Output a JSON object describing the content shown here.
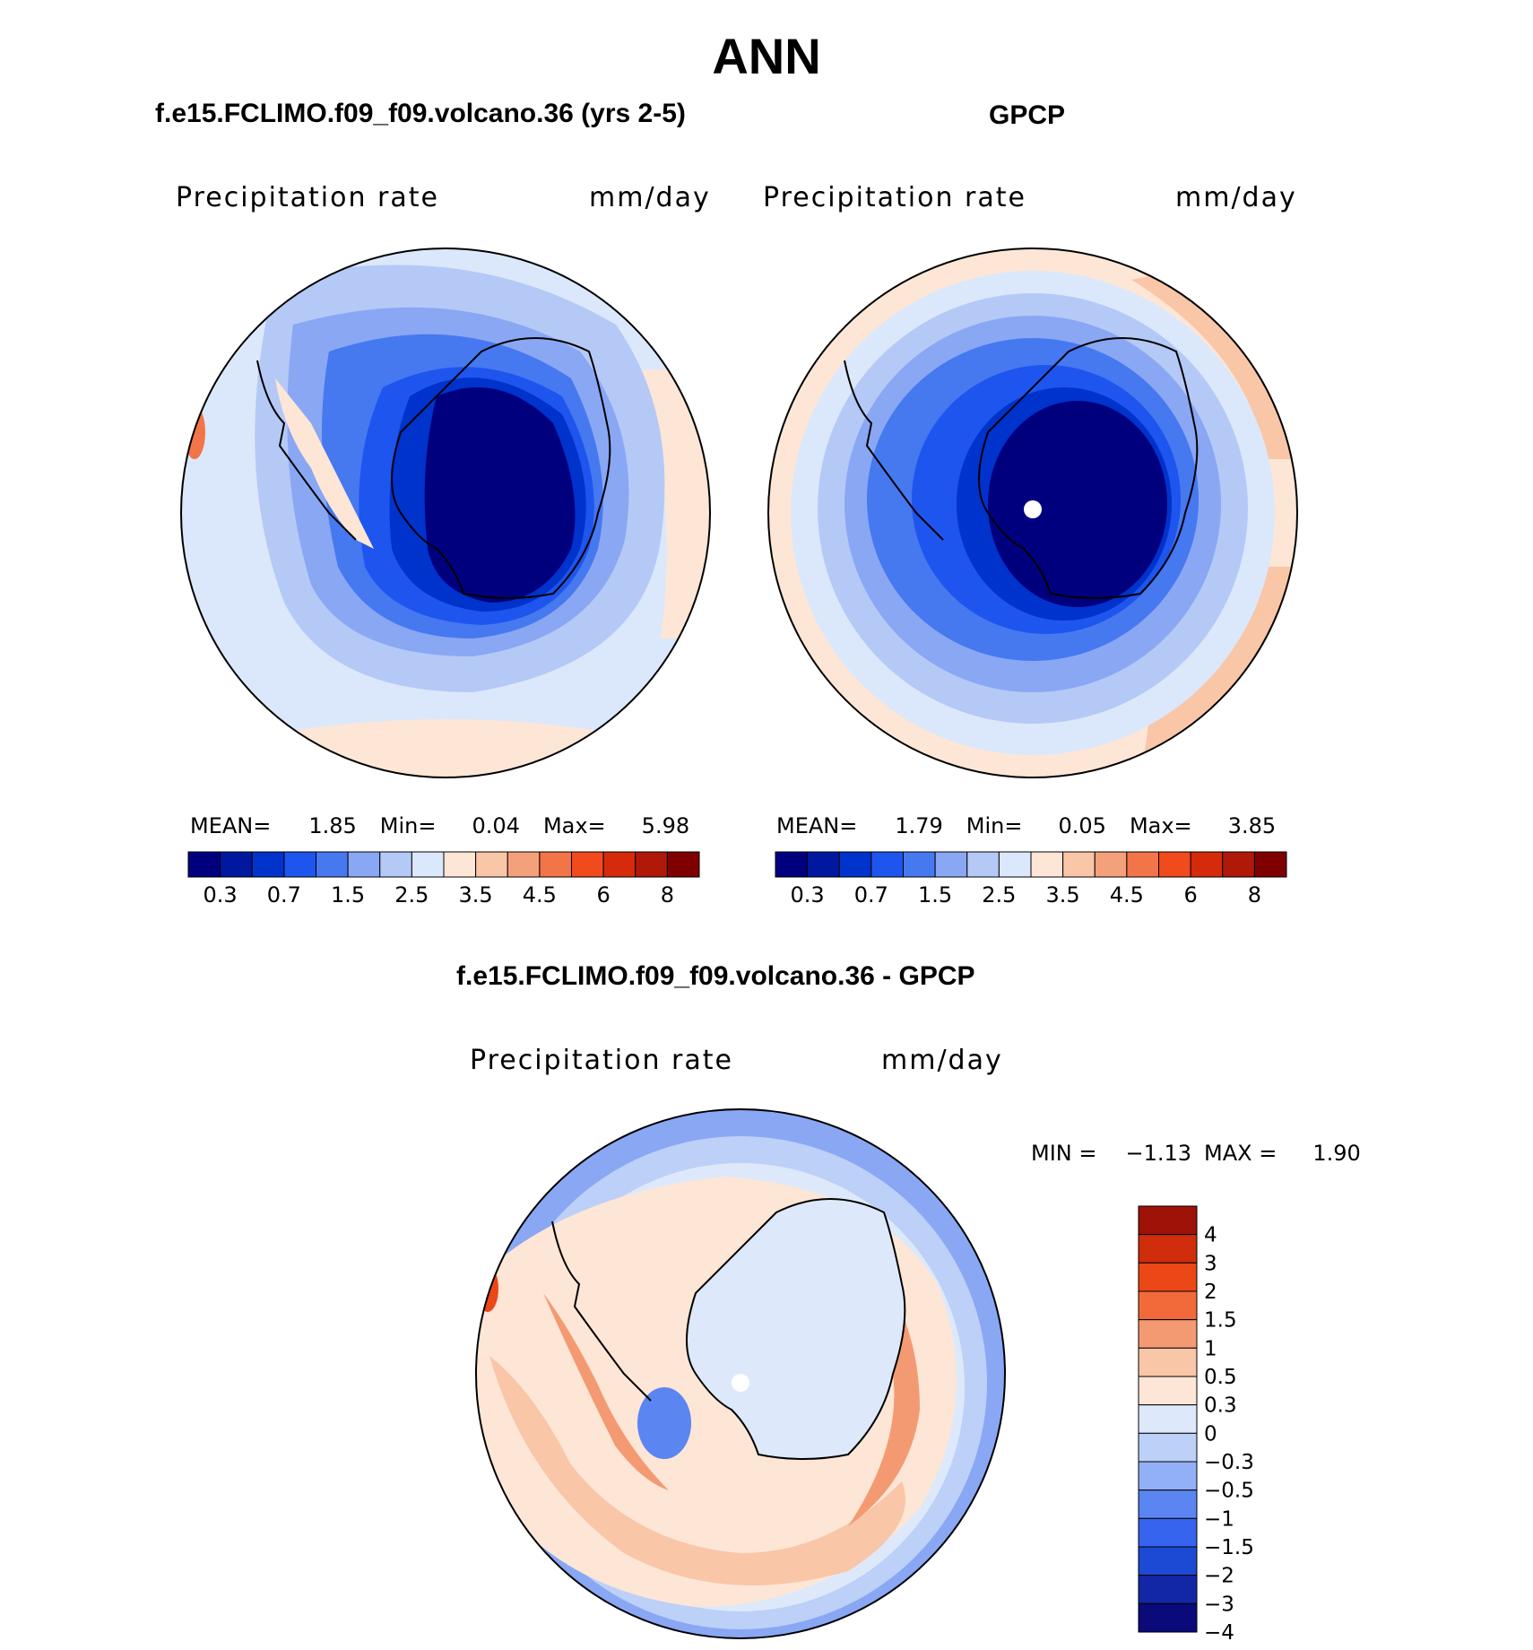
{
  "figure": {
    "title": "ANN",
    "diff_title": "f.e15.FCLIMO.f09_f09.volcano.36 - GPCP"
  },
  "colors": {
    "abs_palette": [
      "#00007f",
      "#0018a0",
      "#0032cc",
      "#1e55ee",
      "#4678f0",
      "#8aa7f4",
      "#b5c9f7",
      "#dbe8fb",
      "#fde6d6",
      "#f9c6a8",
      "#f4a07a",
      "#f27549",
      "#f04a1d",
      "#d52b0b",
      "#b01808",
      "#7f0000"
    ],
    "diff_palette": [
      "#0a0a7a",
      "#1227a5",
      "#1d4ad4",
      "#3664ee",
      "#5b85f1",
      "#92b0f5",
      "#bcd0f8",
      "#dde9fb",
      "#fde6d6",
      "#f9c6a8",
      "#f49a72",
      "#f26a3a",
      "#ec4717",
      "#cf2d0b",
      "#9f1207"
    ]
  },
  "panels": [
    {
      "title": "f.e15.FCLIMO.f09_f09.volcano.36 (yrs 2-5)",
      "variable": "Precipitation rate",
      "units": "mm/day",
      "mean_label": "MEAN=",
      "mean": "1.85",
      "min_label": "Min=",
      "min": "0.04",
      "max_label": "Max=",
      "max": "5.98"
    },
    {
      "title": "GPCP",
      "variable": "Precipitation rate",
      "units": "mm/day",
      "mean_label": "MEAN=",
      "mean": "1.79",
      "min_label": "Min=",
      "min": "0.05",
      "max_label": "Max=",
      "max": "3.85"
    }
  ],
  "diff_panel": {
    "variable": "Precipitation rate",
    "units": "mm/day",
    "min_label": "MIN =",
    "min": "−1.13",
    "max_label": "MAX =",
    "max": "1.90"
  },
  "chart_data": [
    {
      "type": "heatmap",
      "projection": "south-polar-stereographic",
      "title": "f.e15.FCLIMO.f09_f09.volcano.36 (yrs 2-5)",
      "field": "Precipitation rate",
      "units": "mm/day",
      "contour_levels": [
        0.2,
        0.3,
        0.5,
        0.7,
        1,
        1.5,
        2,
        2.5,
        3,
        3.5,
        4,
        4.5,
        5,
        6,
        7,
        8
      ],
      "colorbar_tick_labels": [
        "0.3",
        "0.7",
        "1.5",
        "2.5",
        "3.5",
        "4.5",
        "6",
        "8"
      ],
      "stats": {
        "mean": 1.85,
        "min": 0.04,
        "max": 5.98
      }
    },
    {
      "type": "heatmap",
      "projection": "south-polar-stereographic",
      "title": "GPCP",
      "field": "Precipitation rate",
      "units": "mm/day",
      "contour_levels": [
        0.2,
        0.3,
        0.5,
        0.7,
        1,
        1.5,
        2,
        2.5,
        3,
        3.5,
        4,
        4.5,
        5,
        6,
        7,
        8
      ],
      "colorbar_tick_labels": [
        "0.3",
        "0.7",
        "1.5",
        "2.5",
        "3.5",
        "4.5",
        "6",
        "8"
      ],
      "stats": {
        "mean": 1.79,
        "min": 0.05,
        "max": 3.85
      }
    },
    {
      "type": "heatmap",
      "projection": "south-polar-stereographic",
      "title": "f.e15.FCLIMO.f09_f09.volcano.36 - GPCP",
      "field": "Precipitation rate",
      "units": "mm/day",
      "contour_levels": [
        -4,
        -3,
        -2,
        -1.5,
        -1,
        -0.5,
        -0.3,
        0,
        0.3,
        0.5,
        1,
        1.5,
        2,
        3,
        4
      ],
      "colorbar_tick_labels": [
        "4",
        "3",
        "2",
        "1.5",
        "1",
        "0.5",
        "0.3",
        "0",
        "−0.3",
        "−0.5",
        "−1",
        "−1.5",
        "−2",
        "−3",
        "−4"
      ],
      "stats": {
        "min": -1.13,
        "max": 1.9
      }
    }
  ]
}
